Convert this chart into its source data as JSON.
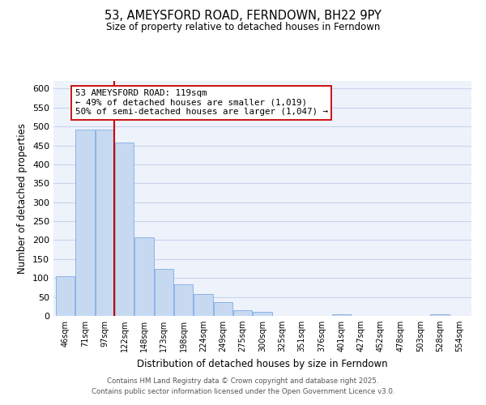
{
  "title": "53, AMEYSFORD ROAD, FERNDOWN, BH22 9PY",
  "subtitle": "Size of property relative to detached houses in Ferndown",
  "xlabel": "Distribution of detached houses by size in Ferndown",
  "ylabel": "Number of detached properties",
  "bin_labels": [
    "46sqm",
    "71sqm",
    "97sqm",
    "122sqm",
    "148sqm",
    "173sqm",
    "198sqm",
    "224sqm",
    "249sqm",
    "275sqm",
    "300sqm",
    "325sqm",
    "351sqm",
    "376sqm",
    "401sqm",
    "427sqm",
    "452sqm",
    "478sqm",
    "503sqm",
    "528sqm",
    "554sqm"
  ],
  "bar_heights": [
    105,
    492,
    492,
    458,
    208,
    123,
    83,
    58,
    37,
    15,
    10,
    0,
    0,
    0,
    5,
    0,
    0,
    0,
    0,
    5,
    0
  ],
  "bar_color": "#c6d9f1",
  "bar_edge_color": "#8cb3e8",
  "vline_x_index": 3,
  "vline_color": "#cc0000",
  "annotation_title": "53 AMEYSFORD ROAD: 119sqm",
  "annotation_line1": "← 49% of detached houses are smaller (1,019)",
  "annotation_line2": "50% of semi-detached houses are larger (1,047) →",
  "annotation_box_color": "#ffffff",
  "annotation_box_edge": "#cc0000",
  "ylim": [
    0,
    620
  ],
  "yticks": [
    0,
    50,
    100,
    150,
    200,
    250,
    300,
    350,
    400,
    450,
    500,
    550,
    600
  ],
  "footer_line1": "Contains HM Land Registry data © Crown copyright and database right 2025.",
  "footer_line2": "Contains public sector information licensed under the Open Government Licence v3.0.",
  "bg_color": "#eef2fb",
  "grid_color": "#c8d4ee"
}
